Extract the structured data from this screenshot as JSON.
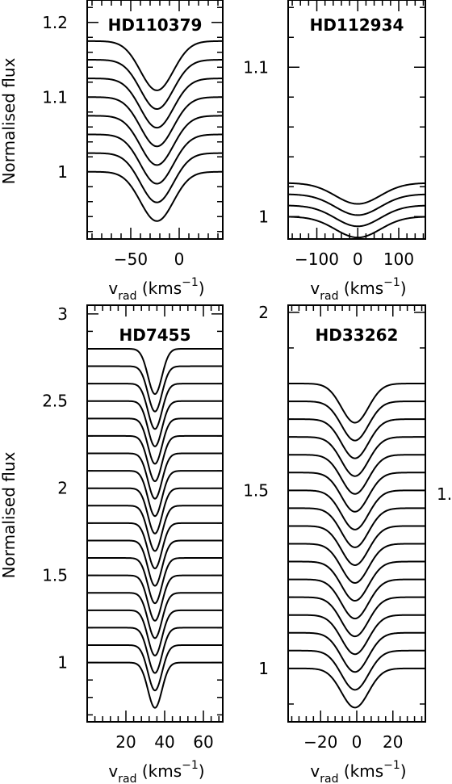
{
  "chart_data": [
    {
      "type": "line",
      "title": "HD110379",
      "xlabel": {
        "v": "v",
        "sub": "rad",
        "unit": " (kms",
        "sup": "−1",
        "close": ")"
      },
      "ylabel": "Normalised flux",
      "xlim": [
        -95,
        45
      ],
      "ylim": [
        0.91,
        1.23
      ],
      "x_ticks": [
        -50,
        0
      ],
      "x_tick_labels": [
        "−50",
        "0"
      ],
      "y_ticks": [
        1,
        1.1,
        1.2
      ],
      "y_tick_labels": [
        "1",
        "1.1",
        "1.2"
      ],
      "profile": {
        "center": -23,
        "width": 17,
        "n_series": 8
      },
      "series": [
        {
          "baseline": 1.0,
          "depth": 0.066
        },
        {
          "baseline": 1.025,
          "depth": 0.066
        },
        {
          "baseline": 1.05,
          "depth": 0.066
        },
        {
          "baseline": 1.075,
          "depth": 0.066
        },
        {
          "baseline": 1.1,
          "depth": 0.066
        },
        {
          "baseline": 1.125,
          "depth": 0.066
        },
        {
          "baseline": 1.15,
          "depth": 0.066
        },
        {
          "baseline": 1.175,
          "depth": 0.066
        }
      ]
    },
    {
      "type": "line",
      "title": "HD112934",
      "xlabel": {
        "v": "v",
        "sub": "rad",
        "unit": " (kms",
        "sup": "−1",
        "close": ")"
      },
      "ylabel": "",
      "xlim": [
        -170,
        165
      ],
      "ylim": [
        0.985,
        1.145
      ],
      "x_ticks": [
        -100,
        0,
        100
      ],
      "x_tick_labels": [
        "−100",
        "0",
        "100"
      ],
      "y_ticks": [
        1,
        1.1
      ],
      "y_tick_labels": [
        "1",
        "1.1"
      ],
      "profile": {
        "center": 0,
        "width": 55,
        "n_series": 4
      },
      "series": [
        {
          "baseline": 1.0,
          "depth": 0.014
        },
        {
          "baseline": 1.0075,
          "depth": 0.014
        },
        {
          "baseline": 1.015,
          "depth": 0.014
        },
        {
          "baseline": 1.0225,
          "depth": 0.014
        }
      ]
    },
    {
      "type": "line",
      "title": "HD7455",
      "xlabel": {
        "v": "v",
        "sub": "rad",
        "unit": " (kms",
        "sup": "−1",
        "close": ")"
      },
      "ylabel": "Normalised flux",
      "xlim": [
        0,
        70
      ],
      "ylim": [
        0.66,
        3.05
      ],
      "x_ticks": [
        20,
        40,
        60
      ],
      "x_tick_labels": [
        "20",
        "40",
        "60"
      ],
      "y_ticks": [
        1,
        1.5,
        2,
        2.5,
        3
      ],
      "y_tick_labels": [
        "1",
        "1.5",
        "2",
        "2.5",
        "3"
      ],
      "profile": {
        "center": 35,
        "width": 3.6,
        "n_series": 19
      },
      "series": [
        {
          "baseline": 1.0,
          "depth": 0.26
        },
        {
          "baseline": 1.1,
          "depth": 0.26
        },
        {
          "baseline": 1.2,
          "depth": 0.26
        },
        {
          "baseline": 1.3,
          "depth": 0.26
        },
        {
          "baseline": 1.4,
          "depth": 0.26
        },
        {
          "baseline": 1.5,
          "depth": 0.26
        },
        {
          "baseline": 1.6,
          "depth": 0.26
        },
        {
          "baseline": 1.7,
          "depth": 0.26
        },
        {
          "baseline": 1.8,
          "depth": 0.26
        },
        {
          "baseline": 1.9,
          "depth": 0.26
        },
        {
          "baseline": 2.0,
          "depth": 0.26
        },
        {
          "baseline": 2.1,
          "depth": 0.26
        },
        {
          "baseline": 2.2,
          "depth": 0.26
        },
        {
          "baseline": 2.3,
          "depth": 0.26
        },
        {
          "baseline": 2.4,
          "depth": 0.26
        },
        {
          "baseline": 2.5,
          "depth": 0.26
        },
        {
          "baseline": 2.6,
          "depth": 0.26
        },
        {
          "baseline": 2.7,
          "depth": 0.26
        },
        {
          "baseline": 2.8,
          "depth": 0.26
        }
      ]
    },
    {
      "type": "line",
      "title": "HD33262",
      "xlabel": {
        "v": "v",
        "sub": "rad",
        "unit": " (kms",
        "sup": "−1",
        "close": ")"
      },
      "ylabel": "",
      "xlim": [
        -38,
        38
      ],
      "ylim": [
        0.85,
        2.02
      ],
      "x_ticks": [
        -20,
        0,
        20
      ],
      "x_tick_labels": [
        "−20",
        "0",
        "20"
      ],
      "y_ticks": [
        1,
        1.5,
        2
      ],
      "y_tick_labels": [
        "1",
        "1.5",
        "2"
      ],
      "profile": {
        "center": -1,
        "width": 7.5,
        "n_series": 17
      },
      "series": [
        {
          "baseline": 1.0,
          "depth": 0.11
        },
        {
          "baseline": 1.05,
          "depth": 0.11
        },
        {
          "baseline": 1.1,
          "depth": 0.11
        },
        {
          "baseline": 1.15,
          "depth": 0.11
        },
        {
          "baseline": 1.2,
          "depth": 0.11
        },
        {
          "baseline": 1.25,
          "depth": 0.11
        },
        {
          "baseline": 1.3,
          "depth": 0.11
        },
        {
          "baseline": 1.35,
          "depth": 0.11
        },
        {
          "baseline": 1.4,
          "depth": 0.11
        },
        {
          "baseline": 1.45,
          "depth": 0.11
        },
        {
          "baseline": 1.5,
          "depth": 0.11
        },
        {
          "baseline": 1.55,
          "depth": 0.11
        },
        {
          "baseline": 1.6,
          "depth": 0.11
        },
        {
          "baseline": 1.65,
          "depth": 0.11
        },
        {
          "baseline": 1.7,
          "depth": 0.11
        },
        {
          "baseline": 1.75,
          "depth": 0.11
        },
        {
          "baseline": 1.8,
          "depth": 0.11
        }
      ]
    }
  ],
  "edge_label": "1.",
  "colors": {
    "line": "#000000",
    "background": "#ffffff"
  }
}
